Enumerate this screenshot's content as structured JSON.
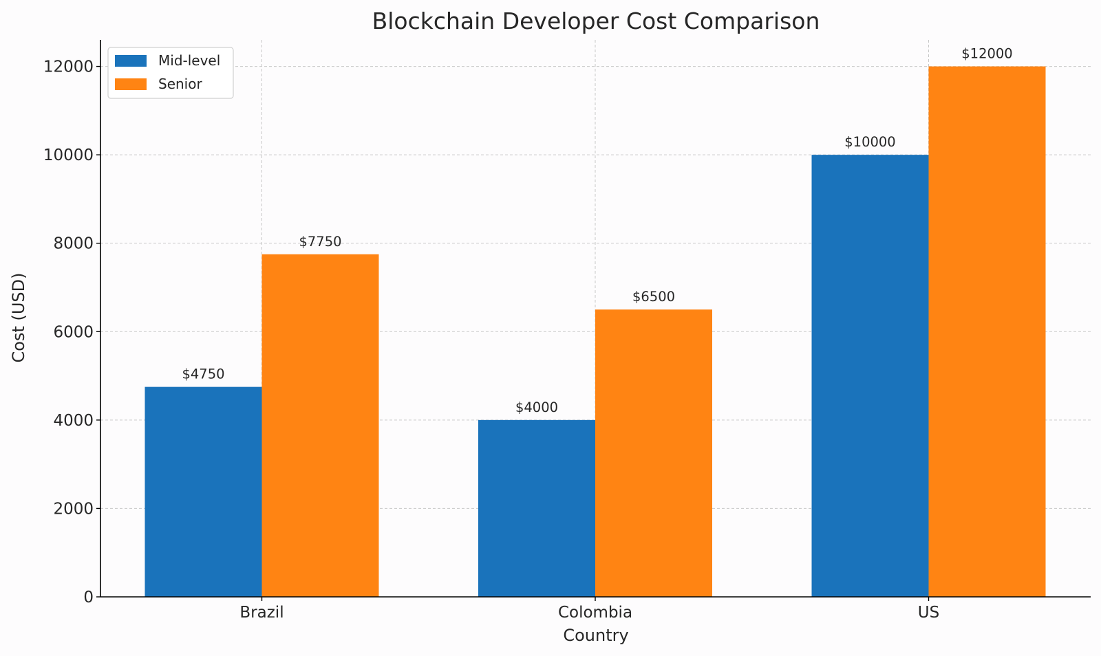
{
  "chart_data": {
    "type": "bar",
    "title": "Blockchain Developer Cost Comparison",
    "xlabel": "Country",
    "ylabel": "Cost (USD)",
    "categories": [
      "Brazil",
      "Colombia",
      "US"
    ],
    "series": [
      {
        "name": "Mid-level",
        "color": "#1a73bb",
        "values": [
          4750,
          4000,
          10000
        ],
        "labels": [
          "$4750",
          "$4000",
          "$10000"
        ]
      },
      {
        "name": "Senior",
        "color": "#ff8413",
        "values": [
          7750,
          6500,
          12000
        ],
        "labels": [
          "$7750",
          "$6500",
          "$12000"
        ]
      }
    ],
    "ylim": [
      0,
      12600
    ],
    "yticks": [
      0,
      2000,
      4000,
      6000,
      8000,
      10000,
      12000
    ],
    "ytick_labels": [
      "0",
      "2000",
      "4000",
      "6000",
      "8000",
      "10000",
      "12000"
    ],
    "grid": true,
    "legend_position": "top-left"
  }
}
